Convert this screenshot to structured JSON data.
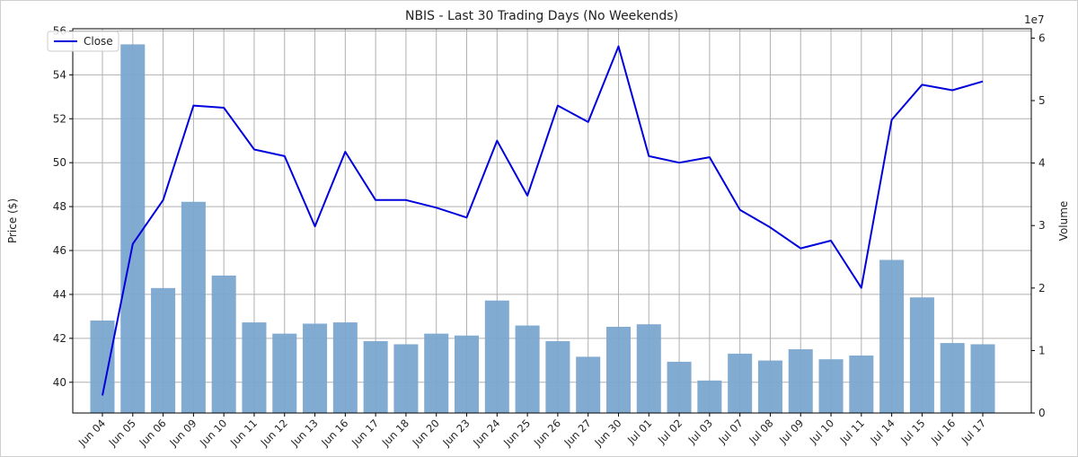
{
  "chart_data": {
    "type": "bar+line",
    "title": "NBIS - Last 30 Trading Days (No Weekends)",
    "xlabel": "",
    "ylabel": "Price ($)",
    "y2label": "Volume",
    "y2_multiplier_label": "1e7",
    "categories": [
      "Jun 04",
      "Jun 05",
      "Jun 06",
      "Jun 09",
      "Jun 10",
      "Jun 11",
      "Jun 12",
      "Jun 13",
      "Jun 16",
      "Jun 17",
      "Jun 18",
      "Jun 20",
      "Jun 23",
      "Jun 24",
      "Jun 25",
      "Jun 26",
      "Jun 27",
      "Jun 30",
      "Jul 01",
      "Jul 02",
      "Jul 03",
      "Jul 07",
      "Jul 08",
      "Jul 09",
      "Jul 10",
      "Jul 11",
      "Jul 14",
      "Jul 15",
      "Jul 16",
      "Jul 17"
    ],
    "ylim": [
      38.6,
      56.1
    ],
    "y2lim": [
      0,
      6.15
    ],
    "yticks": [
      40,
      42,
      44,
      46,
      48,
      50,
      52,
      54,
      56
    ],
    "y2ticks": [
      0,
      1,
      2,
      3,
      4,
      5,
      6
    ],
    "grid": true,
    "legend_position": "top-left",
    "series": [
      {
        "name": "Close",
        "kind": "line",
        "axis": "left",
        "color": "#0000dd",
        "values": [
          39.4,
          46.3,
          48.3,
          52.6,
          52.5,
          50.6,
          50.3,
          47.1,
          50.5,
          48.3,
          48.3,
          47.95,
          47.5,
          51.0,
          48.5,
          52.6,
          51.85,
          55.3,
          50.3,
          50.0,
          50.25,
          47.85,
          47.05,
          46.1,
          46.45,
          44.3,
          51.95,
          53.55,
          53.3,
          53.7
        ]
      },
      {
        "name": "Volume",
        "kind": "bar",
        "axis": "right",
        "color": "#7ba7cf",
        "values": [
          1.48,
          5.9,
          2.0,
          3.38,
          2.2,
          1.45,
          1.27,
          1.43,
          1.45,
          1.15,
          1.1,
          1.27,
          1.24,
          1.8,
          1.4,
          1.15,
          0.9,
          1.38,
          1.42,
          0.82,
          0.52,
          0.95,
          0.84,
          1.02,
          0.86,
          0.92,
          2.45,
          1.85,
          1.12,
          1.1
        ]
      }
    ]
  }
}
